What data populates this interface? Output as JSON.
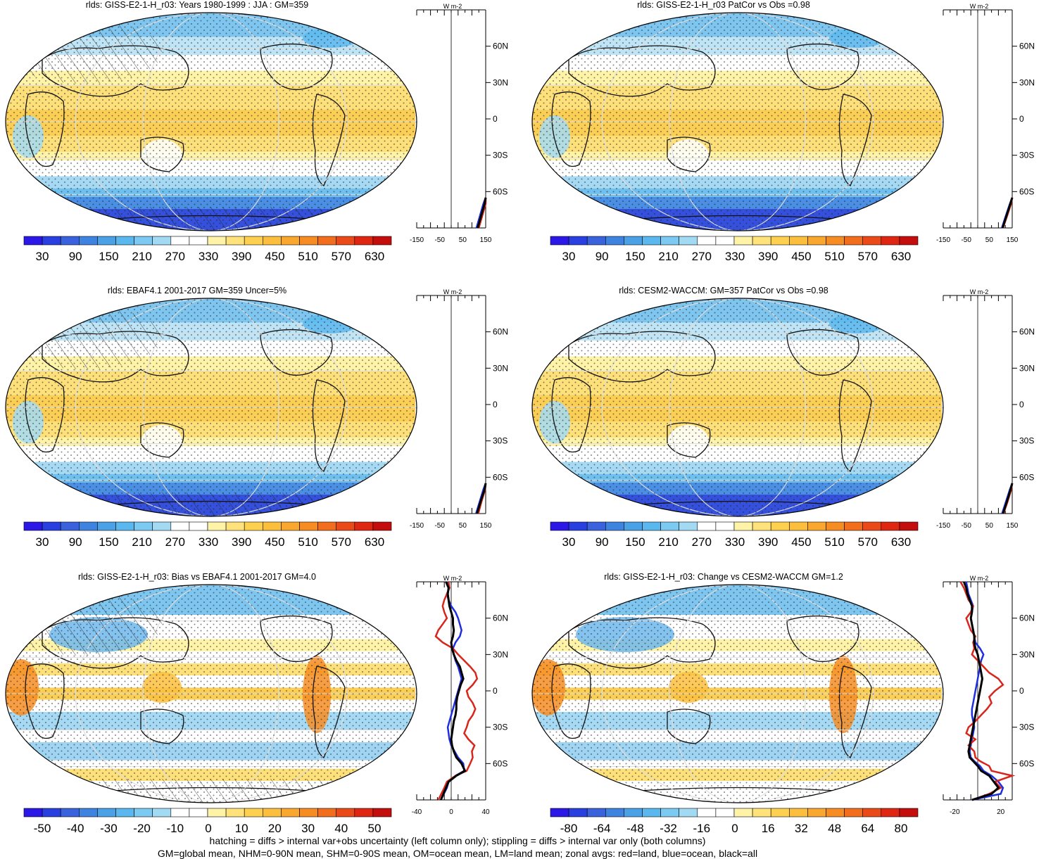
{
  "panels": [
    {
      "id": "p1",
      "title": "rlds: GISS-E2-1-H_r03: Years 1980-1999 : JJA : GM=359",
      "scale": "abs",
      "hatch": true,
      "colorbar_labels": [
        "30",
        "90",
        "150",
        "210",
        "270",
        "330",
        "390",
        "450",
        "510",
        "570",
        "630"
      ],
      "zonal_xticks": [
        "-150",
        "-50",
        "50",
        "150"
      ],
      "zonal_lat_labels": [
        "60N",
        "30N",
        "0",
        "30S",
        "60S"
      ],
      "zonal_unit": "W m-2"
    },
    {
      "id": "p2",
      "title": "rlds: GISS-E2-1-H_r03 PatCor vs Obs =0.98",
      "scale": "abs",
      "hatch": false,
      "colorbar_labels": [
        "30",
        "90",
        "150",
        "210",
        "270",
        "330",
        "390",
        "450",
        "510",
        "570",
        "630"
      ],
      "zonal_xticks": [
        "-150",
        "-50",
        "50",
        "150"
      ],
      "zonal_lat_labels": [
        "60N",
        "30N",
        "0",
        "30S",
        "60S"
      ],
      "zonal_unit": "W m-2"
    },
    {
      "id": "p3",
      "title": "rlds: EBAF4.1 2001-2017 GM=359 Uncer=5%",
      "scale": "abs",
      "hatch": true,
      "colorbar_labels": [
        "30",
        "90",
        "150",
        "210",
        "270",
        "330",
        "390",
        "450",
        "510",
        "570",
        "630"
      ],
      "zonal_xticks": [
        "-150",
        "-50",
        "50",
        "150"
      ],
      "zonal_lat_labels": [
        "60N",
        "30N",
        "0",
        "30S",
        "60S"
      ],
      "zonal_unit": "W m-2"
    },
    {
      "id": "p4",
      "title": "rlds: CESM2-WACCM: GM=357 PatCor vs Obs =0.98",
      "scale": "abs",
      "hatch": false,
      "colorbar_labels": [
        "30",
        "90",
        "150",
        "210",
        "270",
        "330",
        "390",
        "450",
        "510",
        "570",
        "630"
      ],
      "zonal_xticks": [
        "-150",
        "-50",
        "50",
        "150"
      ],
      "zonal_lat_labels": [
        "60N",
        "30N",
        "0",
        "30S",
        "60S"
      ],
      "zonal_unit": "W m-2"
    },
    {
      "id": "p5",
      "title": "rlds: GISS-E2-1-H_r03: Bias vs EBAF4.1 2001-2017 GM=4.0",
      "scale": "diff",
      "hatch": true,
      "colorbar_labels": [
        "-50",
        "-40",
        "-30",
        "-20",
        "-10",
        "0",
        "10",
        "20",
        "30",
        "40",
        "50"
      ],
      "zonal_xticks": [
        "-40",
        "0",
        "40"
      ],
      "zonal_lat_labels": [
        "60N",
        "30N",
        "0",
        "30S",
        "60S"
      ],
      "zonal_unit": "W m-2"
    },
    {
      "id": "p6",
      "title": "rlds: GISS-E2-1-H_r03: Change vs CESM2-WACCM GM=1.2",
      "scale": "diff",
      "hatch": false,
      "colorbar_labels": [
        "-80",
        "-64",
        "-48",
        "-32",
        "-16",
        "0",
        "16",
        "32",
        "48",
        "64",
        "80"
      ],
      "zonal_xticks": [
        "-20",
        "20"
      ],
      "zonal_lat_labels": [
        "60N",
        "30N",
        "0",
        "30S",
        "60S"
      ],
      "zonal_unit": "W m-2"
    }
  ],
  "footer": {
    "line1": "hatching = diffs > internal var+obs uncertainty (left column only); stippling = diffs > internal var only (both columns)",
    "line2": "GM=global mean, NHM=0-90N mean, SHM=0-90S mean, OM=ocean mean, LM=land mean; zonal avgs: red=land, blue=ocean, black=all"
  },
  "colors": {
    "abs_scale": [
      "#2b18e6",
      "#2a3fe0",
      "#3a62dd",
      "#3f83e0",
      "#4ba1e6",
      "#5bb8ee",
      "#7ccaf2",
      "#a2daf4",
      "#ffffff",
      "#ffffff",
      "#fff3a8",
      "#ffe27a",
      "#fdd04f",
      "#fbbf3d",
      "#f9a72e",
      "#f68c22",
      "#f26d1c",
      "#ea4a17",
      "#de2612",
      "#c40d0d"
    ],
    "land": "#d8261c",
    "ocean": "#1f2ee0",
    "all": "#000000"
  },
  "chart_data": [
    {
      "type": "heatmap",
      "title": "rlds: GISS-E2-1-H_r03: Years 1980-1999 : JJA : GM=359",
      "colorbar_ticks": [
        30,
        90,
        150,
        210,
        270,
        330,
        390,
        450,
        510,
        570,
        630
      ],
      "zonal_profile": {
        "xlim": [
          -150,
          150
        ],
        "lat": [
          -90,
          -80,
          -70,
          -65
        ],
        "land": [
          120,
          135,
          150,
          155
        ],
        "ocean": [
          110,
          125,
          140,
          150
        ],
        "all": [
          115,
          130,
          145,
          152
        ]
      }
    },
    {
      "type": "heatmap",
      "title": "rlds: GISS-E2-1-H_r03 PatCor vs Obs =0.98",
      "colorbar_ticks": [
        30,
        90,
        150,
        210,
        270,
        330,
        390,
        450,
        510,
        570,
        630
      ],
      "zonal_profile": {
        "xlim": [
          -150,
          150
        ],
        "lat": [
          -90,
          -80,
          -70,
          -65
        ],
        "land": [
          110,
          128,
          145,
          152
        ],
        "ocean": [
          105,
          122,
          140,
          150
        ],
        "all": [
          108,
          125,
          142,
          151
        ]
      }
    },
    {
      "type": "heatmap",
      "title": "rlds: EBAF4.1 2001-2017 GM=359 Uncer=5%",
      "colorbar_ticks": [
        30,
        90,
        150,
        210,
        270,
        330,
        390,
        450,
        510,
        570,
        630
      ],
      "zonal_profile": {
        "xlim": [
          -150,
          150
        ],
        "lat": [
          -90,
          -80,
          -70,
          -65
        ],
        "land": [
          118,
          132,
          148,
          154
        ],
        "ocean": [
          108,
          124,
          140,
          150
        ],
        "all": [
          112,
          128,
          145,
          152
        ]
      }
    },
    {
      "type": "heatmap",
      "title": "rlds: CESM2-WACCM: GM=357 PatCor vs Obs =0.98",
      "colorbar_ticks": [
        30,
        90,
        150,
        210,
        270,
        330,
        390,
        450,
        510,
        570,
        630
      ],
      "zonal_profile": {
        "xlim": [
          -150,
          150
        ],
        "lat": [
          -90,
          -80,
          -70,
          -65
        ],
        "land": [
          112,
          130,
          146,
          153
        ],
        "ocean": [
          106,
          123,
          140,
          150
        ],
        "all": [
          110,
          127,
          143,
          151
        ]
      }
    },
    {
      "type": "heatmap",
      "title": "rlds: GISS-E2-1-H_r03: Bias vs EBAF4.1 2001-2017 GM=4.0",
      "colorbar_ticks": [
        -50,
        -40,
        -30,
        -20,
        -10,
        0,
        10,
        20,
        30,
        40,
        50
      ],
      "zonal_profile": {
        "xlim": [
          -40,
          40
        ],
        "lat": [
          -90,
          -80,
          -75,
          -70,
          -66,
          -60,
          -55,
          -50,
          -45,
          -40,
          -35,
          -30,
          -25,
          -20,
          -15,
          -10,
          -5,
          0,
          5,
          10,
          15,
          20,
          25,
          30,
          35,
          40,
          45,
          50,
          55,
          60,
          65,
          70,
          75,
          80,
          85,
          90
        ],
        "land": [
          -15,
          -8,
          -5,
          5,
          18,
          22,
          25,
          24,
          27,
          20,
          15,
          18,
          20,
          25,
          28,
          25,
          20,
          18,
          25,
          30,
          28,
          22,
          15,
          8,
          2,
          -10,
          -18,
          -15,
          -10,
          -5,
          -8,
          -10,
          -8,
          -5,
          -2,
          -3
        ],
        "ocean": [
          -12,
          -5,
          -3,
          5,
          15,
          14,
          8,
          4,
          0,
          -2,
          -3,
          -4,
          -2,
          0,
          2,
          4,
          6,
          8,
          10,
          12,
          10,
          8,
          5,
          3,
          2,
          5,
          10,
          12,
          10,
          8,
          5,
          0,
          -3,
          -5,
          -2,
          -5
        ],
        "all": [
          -12,
          -6,
          -3,
          6,
          16,
          12,
          6,
          3,
          1,
          0,
          1,
          2,
          3,
          5,
          6,
          6,
          7,
          9,
          11,
          14,
          12,
          10,
          6,
          3,
          1,
          0,
          2,
          3,
          2,
          2,
          0,
          -2,
          -3,
          -4,
          -3,
          -6
        ]
      }
    },
    {
      "type": "heatmap",
      "title": "rlds: GISS-E2-1-H_r03: Change vs CESM2-WACCM GM=1.2",
      "colorbar_ticks": [
        -80,
        -64,
        -48,
        -32,
        -16,
        0,
        16,
        32,
        48,
        64,
        80
      ],
      "zonal_profile": {
        "xlim": [
          -30,
          30
        ],
        "lat": [
          -90,
          -85,
          -80,
          -75,
          -70,
          -66,
          -62,
          -58,
          -55,
          -50,
          -45,
          -40,
          -35,
          -30,
          -25,
          -20,
          -15,
          -10,
          -5,
          0,
          5,
          10,
          15,
          20,
          25,
          30,
          35,
          40,
          45,
          50,
          55,
          60,
          65,
          70,
          75,
          80,
          85,
          90
        ],
        "land": [
          -5,
          10,
          20,
          15,
          30,
          12,
          10,
          2,
          -2,
          -3,
          -8,
          -2,
          -10,
          -8,
          -2,
          3,
          8,
          12,
          10,
          15,
          22,
          18,
          10,
          5,
          0,
          -5,
          -3,
          -4,
          -2,
          -6,
          -8,
          -10,
          -6,
          -4,
          -8,
          -10,
          -12,
          -15
        ],
        "ocean": [
          -5,
          20,
          22,
          18,
          12,
          5,
          2,
          -3,
          -6,
          -7,
          -6,
          -5,
          -4,
          -3,
          -4,
          -5,
          -5,
          -4,
          -3,
          -2,
          -1,
          0,
          1,
          2,
          3,
          5,
          2,
          -2,
          -3,
          -4,
          -5,
          -6,
          -5,
          -4,
          -6,
          -8,
          -9,
          -10
        ],
        "all": [
          -5,
          12,
          18,
          14,
          10,
          3,
          0,
          -4,
          -7,
          -8,
          -7,
          -6,
          -5,
          -4,
          -3,
          -2,
          -1,
          0,
          1,
          2,
          3,
          4,
          3,
          2,
          1,
          0,
          -2,
          -3,
          -3,
          -4,
          -5,
          -6,
          -5,
          -5,
          -7,
          -9,
          -10,
          -12
        ]
      }
    }
  ]
}
